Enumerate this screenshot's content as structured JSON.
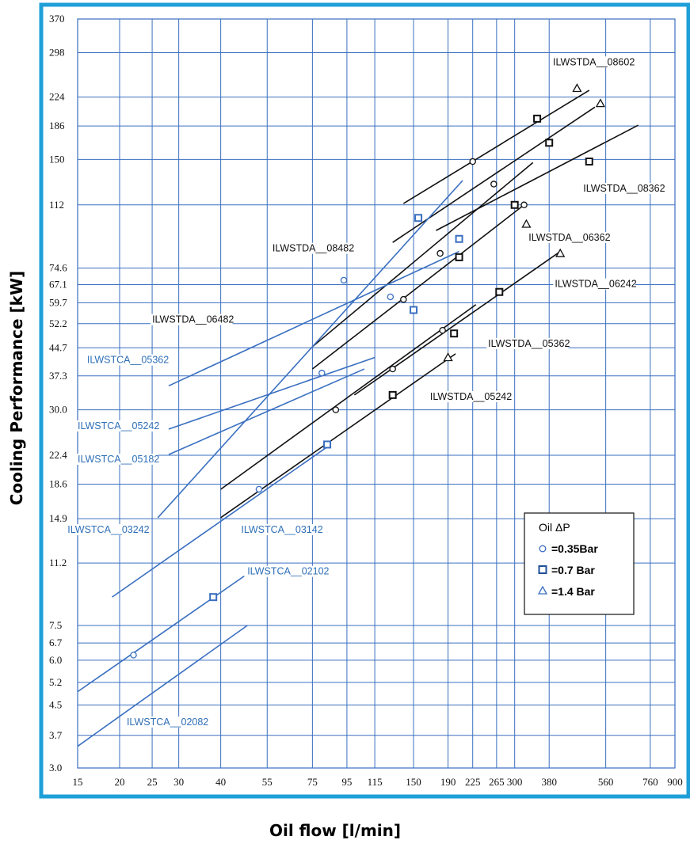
{
  "chart_data": {
    "type": "line",
    "title": "",
    "xlabel": "Oil flow [l/min]",
    "ylabel": "Cooling Performance [kW]",
    "xscale": "log",
    "yscale": "log",
    "xlim": [
      15,
      900
    ],
    "ylim": [
      3.0,
      370
    ],
    "grid": true,
    "x_ticks": [
      "15",
      "20",
      "25",
      "30",
      "40",
      "55",
      "75",
      "95",
      "115",
      "150",
      "190",
      "225",
      "265",
      "300",
      "380",
      "560",
      "760",
      "900"
    ],
    "x_tick_values": [
      15,
      20,
      25,
      30,
      40,
      55,
      75,
      95,
      115,
      150,
      190,
      225,
      265,
      300,
      380,
      560,
      760,
      900
    ],
    "y_ticks": [
      "370",
      "298",
      "224",
      "186",
      "150",
      "112",
      "74.6",
      "67.1",
      "59.7",
      "52.2",
      "44.7",
      "37.3",
      "30.0",
      "22.4",
      "18.6",
      "14.9",
      "11.2",
      "7.5",
      "6.7",
      "6.0",
      "5.2",
      "4.5",
      "3.7",
      "3.0"
    ],
    "y_tick_values": [
      370,
      298,
      224,
      186,
      150,
      112,
      74.6,
      67.1,
      59.7,
      52.2,
      44.7,
      37.3,
      30.0,
      22.4,
      18.6,
      14.9,
      11.2,
      7.5,
      6.7,
      6.0,
      5.2,
      4.5,
      3.7,
      3.0
    ],
    "legend": {
      "title": "Oil ΔP",
      "position": "bottom-right",
      "entries": [
        {
          "marker": "circle",
          "label": "=0.35Bar"
        },
        {
          "marker": "square",
          "label": "=0.7 Bar"
        },
        {
          "marker": "triangle",
          "label": "=1.4 Bar"
        }
      ]
    },
    "series": [
      {
        "name": "ILWSTDA__08602",
        "color": "#111111",
        "line": [
          [
            140,
            113
          ],
          [
            500,
            234
          ]
        ],
        "points": [
          {
            "x": 225,
            "y": 148,
            "m": "circle"
          },
          {
            "x": 350,
            "y": 195,
            "m": "square"
          },
          {
            "x": 460,
            "y": 237,
            "m": "triangle"
          }
        ]
      },
      {
        "name": "ILWSTDA__08362",
        "color": "#111111",
        "line": [
          [
            130,
            88
          ],
          [
            520,
            210
          ]
        ],
        "points": [
          {
            "x": 260,
            "y": 128,
            "m": "circle"
          },
          {
            "x": 380,
            "y": 167,
            "m": "square"
          },
          {
            "x": 540,
            "y": 215,
            "m": "triangle"
          }
        ]
      },
      {
        "name": "ILWSTDA__06362",
        "color": "#111111",
        "line": [
          [
            175,
            95
          ],
          [
            700,
            187
          ]
        ],
        "points": [
          {
            "x": 500,
            "y": 148,
            "m": "square"
          }
        ]
      },
      {
        "name": "ILWSTDA__06482",
        "color": "#111111",
        "line": [
          [
            75,
            45
          ],
          [
            340,
            147
          ]
        ],
        "points": [
          {
            "x": 180,
            "y": 82,
            "m": "circle"
          },
          {
            "x": 300,
            "y": 112,
            "m": "square"
          },
          {
            "x": 320,
            "y": 112,
            "m": "circle"
          }
        ]
      },
      {
        "name": "ILWSTDA__06482b",
        "color": "#111111",
        "line": [
          [
            75,
            39
          ],
          [
            320,
            112
          ]
        ],
        "points": [
          {
            "x": 140,
            "y": 61,
            "m": "circle"
          },
          {
            "x": 205,
            "y": 80,
            "m": "square"
          },
          {
            "x": 325,
            "y": 99,
            "m": "triangle"
          }
        ]
      },
      {
        "name": "ILWSTDA__06242",
        "color": "#111111",
        "line": [
          [
            100,
            33
          ],
          [
            410,
            83
          ]
        ],
        "points": [
          {
            "x": 270,
            "y": 64,
            "m": "square"
          },
          {
            "x": 410,
            "y": 82,
            "m": "triangle"
          }
        ]
      },
      {
        "name": "ILWSTDA__05362",
        "color": "#111111",
        "line": [
          [
            40,
            18
          ],
          [
            230,
            59
          ]
        ],
        "points": [
          {
            "x": 130,
            "y": 39,
            "m": "circle"
          },
          {
            "x": 183,
            "y": 50,
            "m": "circle"
          },
          {
            "x": 198,
            "y": 49,
            "m": "square"
          }
        ]
      },
      {
        "name": "ILWSTDA__05242",
        "color": "#111111",
        "line": [
          [
            40,
            15
          ],
          [
            200,
            43
          ]
        ],
        "points": [
          {
            "x": 88,
            "y": 30,
            "m": "circle"
          },
          {
            "x": 130,
            "y": 33,
            "m": "square"
          },
          {
            "x": 190,
            "y": 42,
            "m": "triangle"
          }
        ]
      },
      {
        "name": "ILWSTDA__08482",
        "color": "#3a6fc0",
        "line": [
          [
            26,
            15
          ],
          [
            210,
            131
          ]
        ],
        "points": [
          {
            "x": 93,
            "y": 69,
            "m": "circle"
          },
          {
            "x": 155,
            "y": 103,
            "m": "square"
          }
        ]
      },
      {
        "name": "ILWSTCA__05362",
        "color": "#3a6fc0",
        "line": [
          [
            28,
            35
          ],
          [
            205,
            83
          ]
        ],
        "points": [
          {
            "x": 128,
            "y": 62,
            "m": "circle"
          },
          {
            "x": 150,
            "y": 57,
            "m": "square"
          },
          {
            "x": 205,
            "y": 90,
            "m": "square"
          }
        ]
      },
      {
        "name": "ILWSTCA__05242",
        "color": "#3a6fc0",
        "line": [
          [
            28,
            26.5
          ],
          [
            115,
            42
          ]
        ],
        "points": [
          {
            "x": 80,
            "y": 38,
            "m": "circle"
          }
        ]
      },
      {
        "name": "ILWSTCA__05182",
        "color": "#3a6fc0",
        "line": [
          [
            28,
            22.5
          ],
          [
            107,
            39
          ]
        ],
        "points": []
      },
      {
        "name": "ILWSTCA__03242",
        "color": "#3a6fc0",
        "line": [
          [
            19,
            9
          ],
          [
            85,
            24
          ]
        ],
        "points": [
          {
            "x": 52,
            "y": 18,
            "m": "circle"
          },
          {
            "x": 83,
            "y": 24,
            "m": "square"
          }
        ]
      },
      {
        "name": "ILWSTCA__02102",
        "color": "#3a6fc0",
        "line": [
          [
            15,
            4.9
          ],
          [
            47,
            10.3
          ]
        ],
        "points": [
          {
            "x": 22,
            "y": 6.2,
            "m": "circle"
          },
          {
            "x": 38,
            "y": 9.0,
            "m": "square"
          }
        ]
      },
      {
        "name": "ILWSTCA__02082",
        "color": "#3a6fc0",
        "line": [
          [
            15,
            3.45
          ],
          [
            48,
            7.5
          ]
        ],
        "points": []
      }
    ],
    "annotations": [
      {
        "text": "ILWSTDA__08602",
        "x": 390,
        "y": 275,
        "color": "black"
      },
      {
        "text": "ILWSTDA__08362",
        "x": 480,
        "y": 122,
        "color": "black"
      },
      {
        "text": "ILWSTDA__06362",
        "x": 330,
        "y": 89,
        "color": "black"
      },
      {
        "text": "ILWSTDA__08482",
        "x": 57,
        "y": 83,
        "color": "black"
      },
      {
        "text": "ILWSTDA__06242",
        "x": 395,
        "y": 66,
        "color": "black"
      },
      {
        "text": "ILWSTDA__06482",
        "x": 25,
        "y": 52.5,
        "color": "black"
      },
      {
        "text": "ILWSTDA__05362",
        "x": 250,
        "y": 45,
        "color": "black"
      },
      {
        "text": "ILWSTDA__05242",
        "x": 168,
        "y": 32,
        "color": "black"
      },
      {
        "text": "ILWSTCA__05362",
        "x": 16,
        "y": 40.5,
        "color": "blue"
      },
      {
        "text": "ILWSTCA__05242",
        "x": 15,
        "y": 26.5,
        "color": "blue"
      },
      {
        "text": "ILWSTCA__05182",
        "x": 15,
        "y": 21.4,
        "color": "blue"
      },
      {
        "text": "ILWSTCA__03242",
        "x": 14,
        "y": 13.6,
        "color": "blue"
      },
      {
        "text": "ILWSTCA__03142",
        "x": 46,
        "y": 13.6,
        "color": "blue"
      },
      {
        "text": "ILWSTCA__02102",
        "x": 48,
        "y": 10.4,
        "color": "blue"
      },
      {
        "text": "ILWSTCA__02082",
        "x": 21,
        "y": 3.95,
        "color": "blue"
      }
    ]
  }
}
